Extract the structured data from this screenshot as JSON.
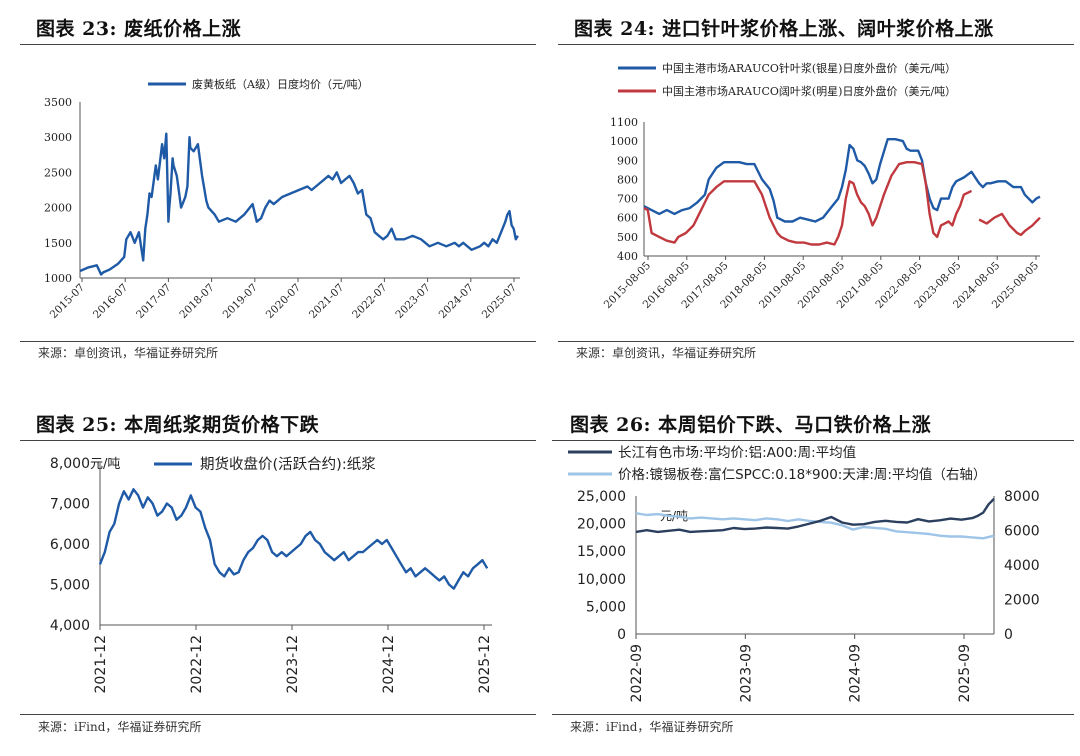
{
  "colors": {
    "blue": "#1f5aa6",
    "red": "#c0393f",
    "navy": "#2b3f5e",
    "lightblue": "#9ec4e8",
    "grid": "#999999"
  },
  "panels": [
    {
      "title": "图表 23:  废纸价格上涨",
      "source": "来源：卓创资讯，华福证券研究所"
    },
    {
      "title": "图表 24:  进口针叶浆价格上涨、阔叶浆价格上涨",
      "source": "来源：卓创资讯，华福证券研究所"
    },
    {
      "title": "图表 25:  本周纸浆期货价格下跌",
      "source": "来源：iFind，华福证券研究所"
    },
    {
      "title": "图表 26:  本周铝价下跌、马口铁价格上涨",
      "source": "来源：iFind，华福证券研究所"
    }
  ],
  "chart_data": [
    {
      "type": "line",
      "title": "废纸价格上涨",
      "legend": [
        "废黄板纸（A级）日度均价（元/吨）"
      ],
      "x_ticks": [
        "2015-07",
        "2016-07",
        "2017-07",
        "2018-07",
        "2019-07",
        "2020-07",
        "2021-07",
        "2022-07",
        "2023-07",
        "2024-07",
        "2025-07"
      ],
      "y_ticks": [
        1000,
        1500,
        2000,
        2500,
        3000,
        3500
      ],
      "ylim": [
        1000,
        3500
      ],
      "xlim": [
        2015.5,
        2025.95
      ],
      "series": [
        {
          "name": "废黄板纸（A级）日度均价（元/吨）",
          "x": [
            2015.5,
            2015.7,
            2015.9,
            2016.0,
            2016.05,
            2016.2,
            2016.4,
            2016.55,
            2016.6,
            2016.7,
            2016.8,
            2016.9,
            2017.0,
            2017.05,
            2017.1,
            2017.15,
            2017.2,
            2017.3,
            2017.35,
            2017.45,
            2017.5,
            2017.55,
            2017.6,
            2017.62,
            2017.65,
            2017.7,
            2017.72,
            2017.8,
            2017.9,
            2018.0,
            2018.05,
            2018.1,
            2018.12,
            2018.2,
            2018.3,
            2018.4,
            2018.5,
            2018.55,
            2018.7,
            2018.8,
            2019.0,
            2019.2,
            2019.4,
            2019.6,
            2019.7,
            2019.8,
            2019.9,
            2020.0,
            2020.1,
            2020.2,
            2020.3,
            2020.5,
            2020.7,
            2020.9,
            2021.0,
            2021.2,
            2021.4,
            2021.5,
            2021.6,
            2021.7,
            2021.8,
            2021.9,
            2022.0,
            2022.1,
            2022.2,
            2022.3,
            2022.4,
            2022.5,
            2022.6,
            2022.7,
            2022.8,
            2022.9,
            2023.0,
            2023.2,
            2023.4,
            2023.6,
            2023.8,
            2024.0,
            2024.2,
            2024.4,
            2024.5,
            2024.6,
            2024.8,
            2025.0,
            2025.1,
            2025.2,
            2025.3,
            2025.4,
            2025.5,
            2025.6,
            2025.65,
            2025.7,
            2025.75,
            2025.8,
            2025.85,
            2025.9
          ],
          "y": [
            1100,
            1150,
            1180,
            1050,
            1080,
            1120,
            1200,
            1300,
            1550,
            1650,
            1500,
            1650,
            1250,
            1700,
            1900,
            2200,
            2150,
            2600,
            2400,
            2900,
            2700,
            3050,
            1800,
            2000,
            2200,
            2700,
            2600,
            2450,
            2000,
            2150,
            2300,
            3000,
            2850,
            2800,
            2900,
            2450,
            2100,
            2000,
            1900,
            1800,
            1850,
            1800,
            1900,
            2050,
            1800,
            1850,
            2000,
            2100,
            2050,
            2100,
            2150,
            2200,
            2250,
            2300,
            2250,
            2350,
            2450,
            2400,
            2500,
            2350,
            2400,
            2450,
            2350,
            2200,
            2250,
            1900,
            1850,
            1650,
            1600,
            1550,
            1600,
            1700,
            1550,
            1550,
            1600,
            1550,
            1450,
            1500,
            1450,
            1500,
            1450,
            1500,
            1400,
            1450,
            1500,
            1450,
            1550,
            1500,
            1650,
            1800,
            1900,
            1950,
            1750,
            1700,
            1550,
            1600
          ]
        }
      ]
    },
    {
      "type": "line",
      "title": "进口针叶浆价格上涨、阔叶浆价格上涨",
      "legend": [
        "中国主港市场ARAUCO针叶浆(银星)日度外盘价（美元/吨）",
        "中国主港市场ARAUCO阔叶浆(明星)日度外盘价（美元/吨）"
      ],
      "x_ticks": [
        "2015-08-05",
        "2016-08-05",
        "2017-08-05",
        "2018-08-05",
        "2019-08-05",
        "2020-08-05",
        "2021-08-05",
        "2022-08-05",
        "2023-08-05",
        "2024-08-05",
        "2025-08-05"
      ],
      "y_ticks": [
        400,
        500,
        600,
        700,
        800,
        900,
        1000,
        1100
      ],
      "ylim": [
        400,
        1100
      ],
      "xlim": [
        2015.6,
        2026.0
      ],
      "series": [
        {
          "name": "针叶浆(银星)",
          "x": [
            2015.6,
            2015.8,
            2016.0,
            2016.2,
            2016.4,
            2016.6,
            2016.8,
            2017.0,
            2017.2,
            2017.3,
            2017.5,
            2017.7,
            2017.9,
            2018.1,
            2018.3,
            2018.5,
            2018.7,
            2018.9,
            2019.0,
            2019.1,
            2019.3,
            2019.5,
            2019.7,
            2019.9,
            2020.1,
            2020.3,
            2020.5,
            2020.7,
            2020.8,
            2020.9,
            2021.0,
            2021.1,
            2021.2,
            2021.3,
            2021.4,
            2021.5,
            2021.6,
            2021.7,
            2021.8,
            2022.0,
            2022.2,
            2022.4,
            2022.5,
            2022.6,
            2022.8,
            2022.9,
            2023.0,
            2023.1,
            2023.2,
            2023.3,
            2023.4,
            2023.6,
            2023.7,
            2023.8,
            2024.0,
            2024.2,
            2024.4,
            2024.5,
            2024.6,
            2024.7,
            2024.9,
            2025.1,
            2025.3,
            2025.5,
            2025.6,
            2025.7,
            2025.8,
            2025.9,
            2026.0
          ],
          "y": [
            660,
            640,
            620,
            640,
            620,
            640,
            650,
            680,
            720,
            800,
            860,
            890,
            890,
            890,
            880,
            880,
            800,
            750,
            690,
            600,
            580,
            580,
            600,
            590,
            580,
            600,
            650,
            700,
            760,
            850,
            980,
            960,
            900,
            890,
            870,
            830,
            780,
            800,
            880,
            1010,
            1010,
            1000,
            960,
            950,
            950,
            900,
            780,
            700,
            650,
            640,
            700,
            700,
            760,
            790,
            810,
            840,
            780,
            760,
            780,
            780,
            790,
            790,
            760,
            760,
            720,
            700,
            680,
            700,
            710
          ]
        },
        {
          "name": "阔叶浆(明星)",
          "x": [
            2015.6,
            2015.7,
            2015.8,
            2016.0,
            2016.2,
            2016.4,
            2016.5,
            2016.7,
            2016.9,
            2017.0,
            2017.2,
            2017.3,
            2017.5,
            2017.7,
            2017.9,
            2018.1,
            2018.3,
            2018.5,
            2018.7,
            2018.9,
            2019.0,
            2019.1,
            2019.2,
            2019.4,
            2019.6,
            2019.8,
            2020.0,
            2020.2,
            2020.4,
            2020.6,
            2020.7,
            2020.8,
            2020.9,
            2021.0,
            2021.1,
            2021.2,
            2021.3,
            2021.4,
            2021.5,
            2021.6,
            2021.7,
            2021.9,
            2022.1,
            2022.3,
            2022.5,
            2022.7,
            2022.9,
            2023.0,
            2023.1,
            2023.2,
            2023.3,
            2023.4,
            2023.6,
            2023.7,
            2023.8,
            2023.9,
            2024.0,
            2024.2
          ],
          "y": [
            650,
            640,
            520,
            500,
            480,
            470,
            500,
            520,
            560,
            600,
            680,
            720,
            760,
            790,
            790,
            790,
            790,
            790,
            720,
            600,
            560,
            520,
            500,
            480,
            470,
            470,
            460,
            460,
            470,
            460,
            500,
            560,
            700,
            790,
            780,
            720,
            680,
            660,
            620,
            560,
            600,
            720,
            820,
            880,
            890,
            890,
            880,
            780,
            620,
            520,
            500,
            560,
            580,
            560,
            620,
            660,
            720,
            740
          ]
        },
        {
          "name": "阔叶浆(明星) 后段",
          "x": [
            2024.4,
            2024.5,
            2024.6,
            2024.8,
            2024.9,
            2025.0,
            2025.2,
            2025.4,
            2025.5,
            2025.6,
            2025.8,
            2025.9,
            2026.0
          ],
          "y": [
            590,
            580,
            570,
            600,
            610,
            620,
            560,
            520,
            510,
            530,
            560,
            580,
            600
          ]
        }
      ]
    },
    {
      "type": "line",
      "title": "本周纸浆期货价格下跌",
      "legend": [
        "期货收盘价(活跃合约):纸浆"
      ],
      "ylabel": "元/吨",
      "x_ticks": [
        "2021-12",
        "2022-12",
        "2023-12",
        "2024-12",
        "2025-12"
      ],
      "y_ticks": [
        "4,000",
        "5,000",
        "6,000",
        "7,000",
        "8,000"
      ],
      "ylim": [
        4000,
        8000
      ],
      "xlim": [
        2021.9,
        2026.0
      ],
      "series": [
        {
          "name": "期货收盘价(活跃合约):纸浆",
          "x": [
            2021.9,
            2021.95,
            2022.0,
            2022.05,
            2022.1,
            2022.15,
            2022.2,
            2022.25,
            2022.3,
            2022.35,
            2022.4,
            2022.45,
            2022.5,
            2022.55,
            2022.6,
            2022.65,
            2022.7,
            2022.75,
            2022.8,
            2022.85,
            2022.9,
            2022.95,
            2023.0,
            2023.05,
            2023.1,
            2023.15,
            2023.2,
            2023.25,
            2023.3,
            2023.35,
            2023.4,
            2023.45,
            2023.5,
            2023.55,
            2023.6,
            2023.65,
            2023.7,
            2023.75,
            2023.8,
            2023.85,
            2023.9,
            2023.95,
            2024.0,
            2024.05,
            2024.1,
            2024.15,
            2024.2,
            2024.25,
            2024.3,
            2024.35,
            2024.4,
            2024.45,
            2024.5,
            2024.55,
            2024.6,
            2024.65,
            2024.7,
            2024.75,
            2024.8,
            2024.85,
            2024.9,
            2024.95,
            2025.0,
            2025.05,
            2025.1,
            2025.15,
            2025.2,
            2025.25,
            2025.3,
            2025.35,
            2025.4,
            2025.45,
            2025.5,
            2025.55,
            2025.6,
            2025.65,
            2025.7,
            2025.75,
            2025.8,
            2025.85,
            2025.9,
            2025.95
          ],
          "y": [
            5500,
            5800,
            6300,
            6500,
            7000,
            7300,
            7100,
            7350,
            7200,
            6900,
            7150,
            7000,
            6700,
            6800,
            7000,
            6900,
            6600,
            6700,
            6900,
            7200,
            6900,
            6800,
            6400,
            6100,
            5500,
            5300,
            5200,
            5400,
            5250,
            5300,
            5600,
            5800,
            5900,
            6100,
            6200,
            6100,
            5800,
            5700,
            5800,
            5700,
            5800,
            5900,
            6000,
            6200,
            6300,
            6100,
            6000,
            5800,
            5700,
            5600,
            5700,
            5800,
            5600,
            5700,
            5800,
            5800,
            5900,
            6000,
            6100,
            6000,
            6100,
            5900,
            5700,
            5500,
            5300,
            5400,
            5200,
            5300,
            5400,
            5300,
            5200,
            5100,
            5200,
            5000,
            4900,
            5100,
            5300,
            5200,
            5400,
            5500,
            5600,
            5400
          ]
        }
      ]
    },
    {
      "type": "line",
      "title": "本周铝价下跌、马口铁价格上涨",
      "legend": [
        "长江有色市场:平均价:铝:A00:周:平均值",
        "价格:镀锡板卷:富仁SPCC:0.18*900:天津:周:平均值（右轴）"
      ],
      "ylabel": "元/吨",
      "x_ticks": [
        "2022-09",
        "2023-09",
        "2024-09",
        "2025-09"
      ],
      "y_ticks": [
        "0",
        "5,000",
        "10,000",
        "15,000",
        "20,000",
        "25,000"
      ],
      "y2_ticks": [
        "0",
        "2000",
        "4000",
        "6000",
        "8000"
      ],
      "ylim": [
        0,
        25000
      ],
      "y2lim": [
        0,
        8000
      ],
      "xlim": [
        2022.7,
        2026.0
      ],
      "series": [
        {
          "name": "长江有色市场:平均价:铝:A00:周:平均值",
          "axis": "left",
          "x": [
            2022.7,
            2022.8,
            2022.9,
            2023.0,
            2023.1,
            2023.2,
            2023.3,
            2023.4,
            2023.5,
            2023.6,
            2023.7,
            2023.8,
            2023.9,
            2024.0,
            2024.1,
            2024.2,
            2024.3,
            2024.4,
            2024.5,
            2024.6,
            2024.7,
            2024.8,
            2024.9,
            2025.0,
            2025.1,
            2025.2,
            2025.3,
            2025.4,
            2025.5,
            2025.6,
            2025.7,
            2025.8,
            2025.85,
            2025.9,
            2025.95,
            2026.0
          ],
          "y": [
            18500,
            18800,
            18500,
            18700,
            18900,
            18500,
            18600,
            18700,
            18800,
            19200,
            19000,
            19100,
            19300,
            19200,
            19100,
            19500,
            20000,
            20500,
            21200,
            20200,
            19800,
            19900,
            20300,
            20500,
            20300,
            20200,
            20800,
            20400,
            20600,
            20900,
            20700,
            21000,
            21400,
            22000,
            23500,
            24500
          ]
        },
        {
          "name": "价格:镀锡板卷:富仁SPCC:0.18*900:天津:周:平均值（右轴）",
          "axis": "right",
          "x": [
            2022.7,
            2022.8,
            2022.9,
            2023.0,
            2023.1,
            2023.2,
            2023.3,
            2023.4,
            2023.5,
            2023.6,
            2023.7,
            2023.8,
            2023.9,
            2024.0,
            2024.1,
            2024.2,
            2024.3,
            2024.4,
            2024.5,
            2024.6,
            2024.7,
            2024.8,
            2024.9,
            2025.0,
            2025.1,
            2025.2,
            2025.3,
            2025.4,
            2025.5,
            2025.6,
            2025.7,
            2025.8,
            2025.9,
            2026.0
          ],
          "y": [
            7000,
            6900,
            6950,
            6850,
            6800,
            6700,
            6750,
            6700,
            6650,
            6700,
            6650,
            6600,
            6700,
            6650,
            6550,
            6650,
            6550,
            6500,
            6450,
            6300,
            6050,
            6200,
            6150,
            6100,
            5950,
            5900,
            5850,
            5800,
            5700,
            5650,
            5650,
            5600,
            5550,
            5700
          ]
        }
      ]
    }
  ]
}
